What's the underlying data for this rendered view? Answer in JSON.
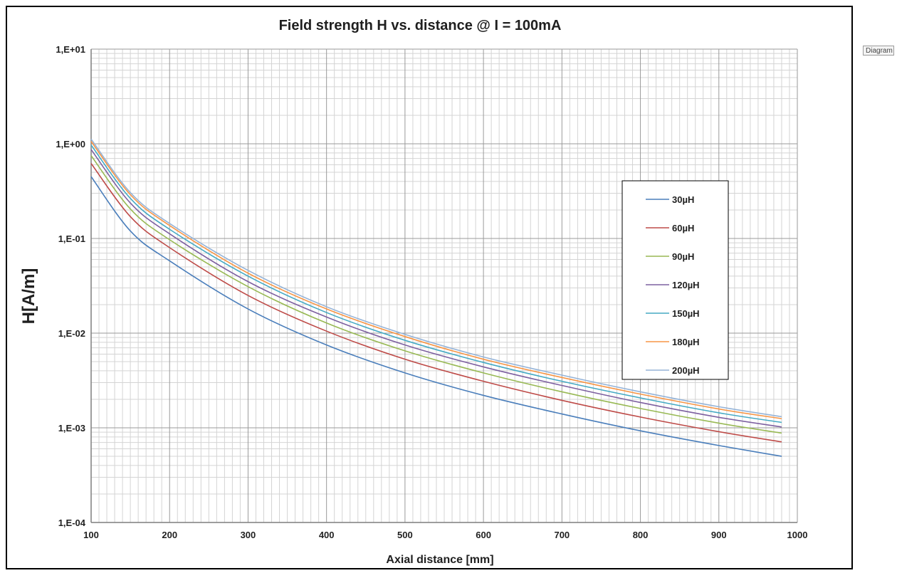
{
  "window": {
    "tab_label": "Diagram"
  },
  "colors": {
    "grid_minor": "#d4d4d4",
    "grid_major": "#9a9a9a",
    "axis": "#7f7f7f",
    "text": "#1f1f1f"
  },
  "chart_data": {
    "type": "line",
    "title": "Field strength H vs. distance @ I = 100mA",
    "xlabel": "Axial distance [mm]",
    "ylabel": "H[A/m]",
    "xlim": [
      100,
      1000
    ],
    "ylim": [
      0.0001,
      10
    ],
    "yscale": "log",
    "grid": true,
    "legend_position": "right",
    "x_ticks": [
      "100",
      "200",
      "300",
      "400",
      "500",
      "600",
      "700",
      "800",
      "900",
      "1000"
    ],
    "y_ticks": [
      "1,E+01",
      "1,E+00",
      "1,E-01",
      "1,E-02",
      "1,E-03",
      "1,E-04"
    ],
    "x": [
      100,
      150,
      200,
      300,
      400,
      500,
      600,
      700,
      800,
      900,
      980
    ],
    "series": [
      {
        "name": "30µH",
        "color": "#4a7ebb",
        "values": [
          0.45,
          0.12,
          0.058,
          0.018,
          0.0075,
          0.0038,
          0.0022,
          0.0014,
          0.00093,
          0.00065,
          0.0005
        ]
      },
      {
        "name": "60µH",
        "color": "#be4b48",
        "values": [
          0.62,
          0.17,
          0.08,
          0.025,
          0.0105,
          0.0053,
          0.0031,
          0.00195,
          0.0013,
          0.00091,
          0.00071
        ]
      },
      {
        "name": "90µH",
        "color": "#98b954",
        "values": [
          0.75,
          0.205,
          0.097,
          0.031,
          0.0128,
          0.0065,
          0.0038,
          0.0024,
          0.0016,
          0.00112,
          0.00088
        ]
      },
      {
        "name": "120µH",
        "color": "#7d60a0",
        "values": [
          0.87,
          0.237,
          0.112,
          0.035,
          0.0148,
          0.0075,
          0.0044,
          0.0028,
          0.00185,
          0.00129,
          0.00102
        ]
      },
      {
        "name": "150µH",
        "color": "#46aac4",
        "values": [
          0.97,
          0.265,
          0.125,
          0.04,
          0.0165,
          0.0084,
          0.0049,
          0.0031,
          0.00207,
          0.00144,
          0.00114
        ]
      },
      {
        "name": "180µH",
        "color": "#f79646",
        "values": [
          1.06,
          0.29,
          0.137,
          0.043,
          0.018,
          0.0092,
          0.0053,
          0.0034,
          0.00227,
          0.00158,
          0.00125
        ]
      },
      {
        "name": "200µH",
        "color": "#95b3d7",
        "values": [
          1.12,
          0.305,
          0.144,
          0.046,
          0.019,
          0.0097,
          0.0056,
          0.0036,
          0.0024,
          0.00167,
          0.00131
        ]
      }
    ]
  }
}
